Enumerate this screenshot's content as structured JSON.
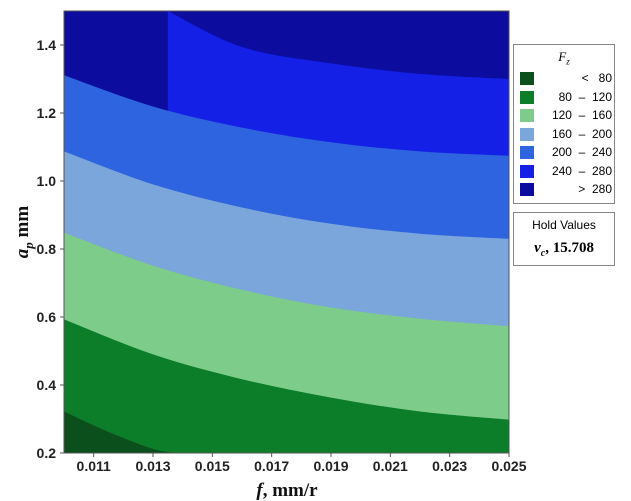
{
  "chart_data": {
    "type": "contour",
    "xlabel_main": "f",
    "xlabel_unit": ", mm/r",
    "ylabel_main": "a",
    "ylabel_sub": "p",
    "ylabel_unit": " mm",
    "xlim": [
      0.01,
      0.025
    ],
    "ylim": [
      0.2,
      1.5
    ],
    "x_ticks": [
      0.011,
      0.013,
      0.015,
      0.017,
      0.019,
      0.021,
      0.023,
      0.025
    ],
    "x_tick_labels": [
      "0.011",
      "0.013",
      "0.015",
      "0.017",
      "0.019",
      "0.021",
      "0.023",
      "0.025"
    ],
    "y_ticks": [
      0.2,
      0.4,
      0.6,
      0.8,
      1.0,
      1.2,
      1.4
    ],
    "y_tick_labels": [
      "0.2",
      "0.4",
      "0.6",
      "0.8",
      "1.0",
      "1.2",
      "1.4"
    ],
    "legend_title_main": "F",
    "legend_title_sub": "z",
    "legend_placement": "right",
    "levels": [
      {
        "label": "<   80",
        "color": "#0b4f1c"
      },
      {
        "label": "80  –  120",
        "color": "#0c7d28"
      },
      {
        "label": "120  –  160",
        "color": "#7dcc8a"
      },
      {
        "label": "160  –  200",
        "color": "#7aa6dc"
      },
      {
        "label": "200  –  240",
        "color": "#2f64e0"
      },
      {
        "label": "240  –  280",
        "color": "#1520e6"
      },
      {
        "label": ">  280",
        "color": "#0c0c9e"
      }
    ],
    "contours": [
      {
        "level": 80,
        "x": [
          0.01,
          0.0115,
          0.013,
          0.0138
        ],
        "y": [
          0.322,
          0.262,
          0.212,
          0.2
        ]
      },
      {
        "level": 120,
        "x": [
          0.01,
          0.013,
          0.016,
          0.019,
          0.022,
          0.025
        ],
        "y": [
          0.593,
          0.49,
          0.417,
          0.363,
          0.322,
          0.298
        ]
      },
      {
        "level": 160,
        "x": [
          0.01,
          0.013,
          0.016,
          0.019,
          0.022,
          0.025
        ],
        "y": [
          0.848,
          0.751,
          0.68,
          0.628,
          0.595,
          0.573
        ]
      },
      {
        "level": 200,
        "x": [
          0.01,
          0.013,
          0.016,
          0.019,
          0.022,
          0.025
        ],
        "y": [
          1.087,
          0.99,
          0.922,
          0.874,
          0.845,
          0.83
        ]
      },
      {
        "level": 240,
        "x": [
          0.01,
          0.013,
          0.016,
          0.019,
          0.022,
          0.025
        ],
        "y": [
          1.311,
          1.219,
          1.157,
          1.114,
          1.087,
          1.074
        ]
      },
      {
        "level": 280,
        "x": [
          0.0135,
          0.016,
          0.019,
          0.022,
          0.025
        ],
        "y": [
          1.5,
          1.394,
          1.346,
          1.315,
          1.3
        ]
      }
    ],
    "hold_title": "Hold Values",
    "hold_var": "v",
    "hold_var_sub": "c",
    "hold_value": ", 15.708"
  }
}
